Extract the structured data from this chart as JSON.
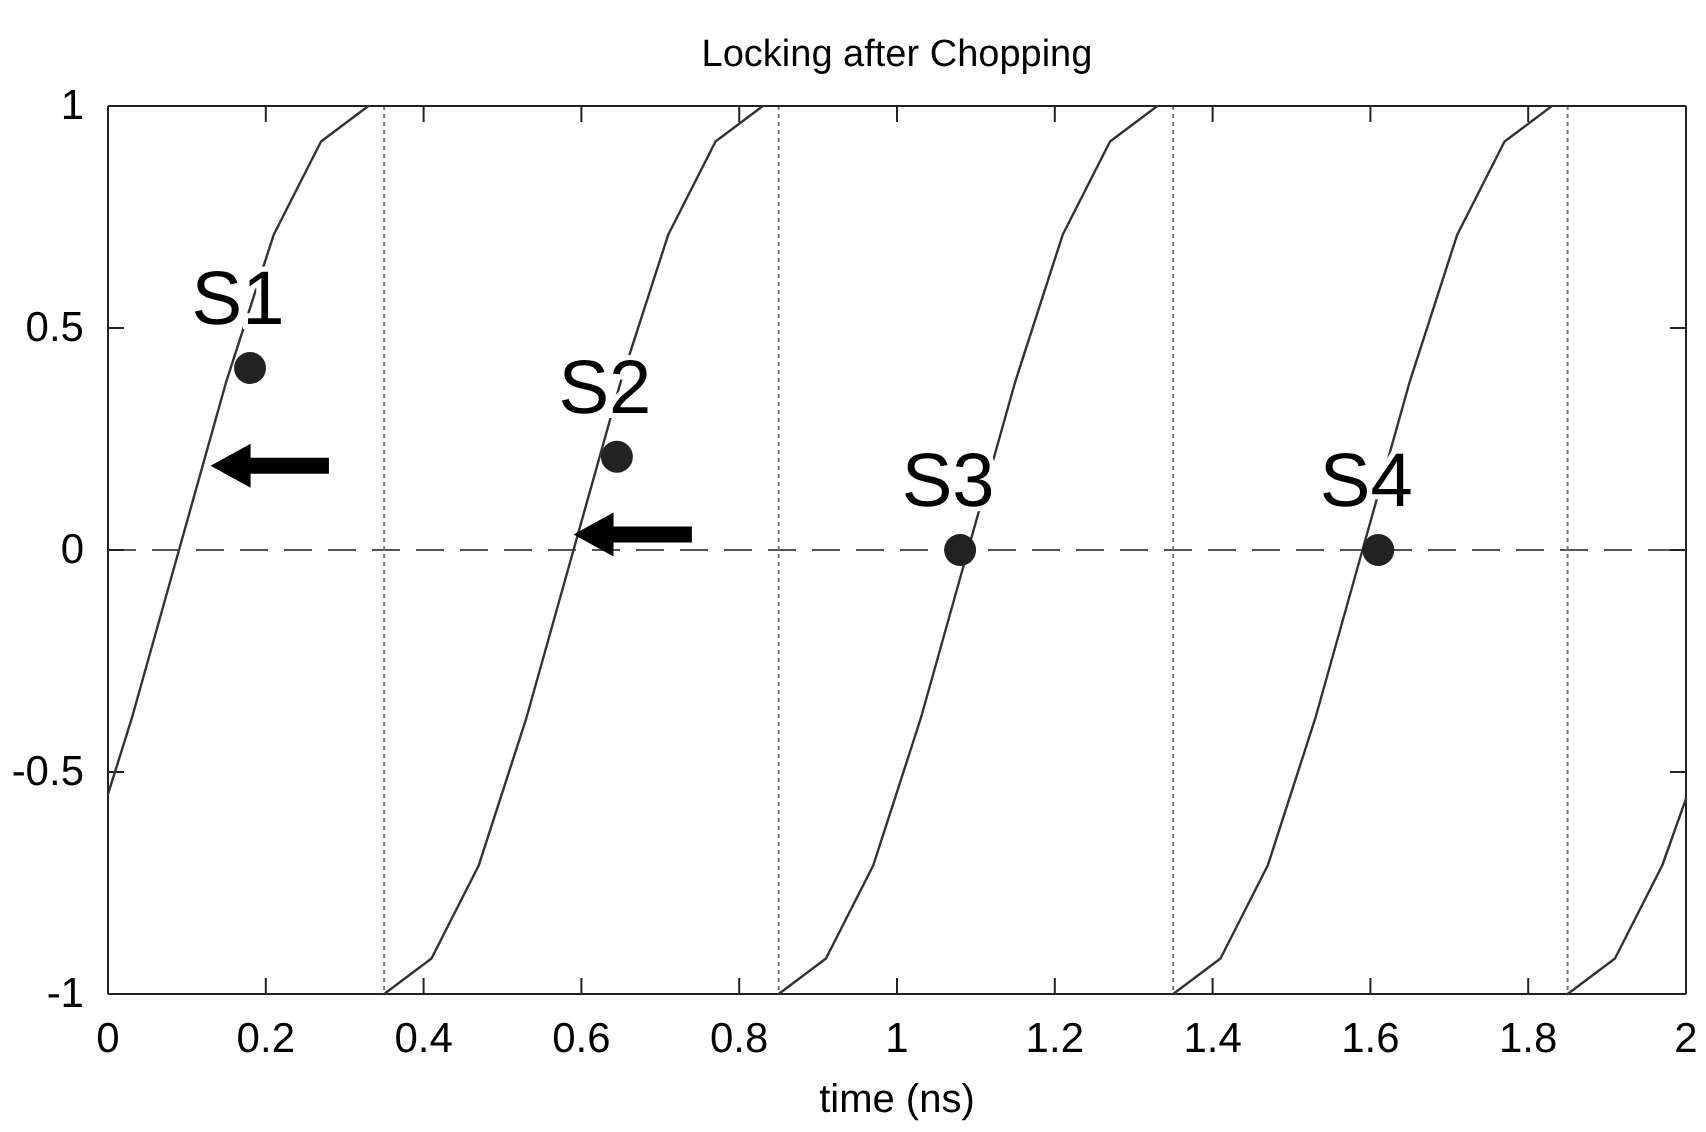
{
  "chart_data": {
    "type": "line",
    "title": "Locking after Chopping",
    "xlabel": "time (ns)",
    "xlim": [
      0,
      2
    ],
    "xticks": [
      0,
      0.2,
      0.4,
      0.6,
      0.8,
      1,
      1.2,
      1.4,
      1.6,
      1.8,
      2
    ],
    "ylim": [
      -1,
      1
    ],
    "yticks": [
      -1,
      -0.5,
      0,
      0.5,
      1
    ],
    "grid": false,
    "line_style": "solid",
    "series": [
      {
        "color": "#333333",
        "x": [
          0,
          0.03,
          0.09,
          0.15,
          0.21,
          0.27,
          0.33
        ],
        "values": [
          -0.55,
          -0.38,
          0,
          0.38,
          0.71,
          0.92,
          1
        ]
      },
      {
        "color": "#333333",
        "x": [
          0.35,
          0.41,
          0.47,
          0.53,
          0.59,
          0.65,
          0.71,
          0.77,
          0.83
        ],
        "values": [
          -1,
          -0.92,
          -0.71,
          -0.38,
          0,
          0.38,
          0.71,
          0.92,
          1
        ]
      },
      {
        "color": "#333333",
        "x": [
          0.85,
          0.91,
          0.97,
          1.03,
          1.09,
          1.15,
          1.21,
          1.27,
          1.33
        ],
        "values": [
          -1,
          -0.92,
          -0.71,
          -0.38,
          0,
          0.38,
          0.71,
          0.92,
          1
        ]
      },
      {
        "color": "#333333",
        "x": [
          1.35,
          1.41,
          1.47,
          1.53,
          1.59,
          1.65,
          1.71,
          1.77,
          1.83
        ],
        "values": [
          -1,
          -0.92,
          -0.71,
          -0.38,
          0,
          0.38,
          0.71,
          0.92,
          1
        ]
      },
      {
        "color": "#333333",
        "x": [
          1.85,
          1.91,
          1.97,
          2
        ],
        "values": [
          -1,
          -0.92,
          -0.71,
          -0.56
        ]
      },
      {
        "type": "scatter",
        "color": "#222222",
        "marker": "circle",
        "x": [
          0.18,
          0.645,
          1.08,
          1.61
        ],
        "values": [
          0.41,
          0.21,
          0,
          0
        ]
      }
    ],
    "annotations": [
      {
        "text": "S1",
        "x": 0.18,
        "y": 0.41
      },
      {
        "text": "S2",
        "x": 0.645,
        "y": 0.21
      },
      {
        "text": "S3",
        "x": 1.08,
        "y": 0
      },
      {
        "text": "S4",
        "x": 1.61,
        "y": 0
      }
    ],
    "ref_lines": [
      {
        "axis": "y",
        "value": 0,
        "color": "#555555",
        "line_style": "dashed"
      },
      {
        "axis": "x",
        "value": 0.35,
        "color": "#777777",
        "line_style": "dotted"
      },
      {
        "axis": "x",
        "value": 0.85,
        "color": "#777777",
        "line_style": "dotted"
      },
      {
        "axis": "x",
        "value": 1.35,
        "color": "#777777",
        "line_style": "dotted"
      },
      {
        "axis": "x",
        "value": 1.85,
        "color": "#777777",
        "line_style": "dotted"
      }
    ]
  }
}
